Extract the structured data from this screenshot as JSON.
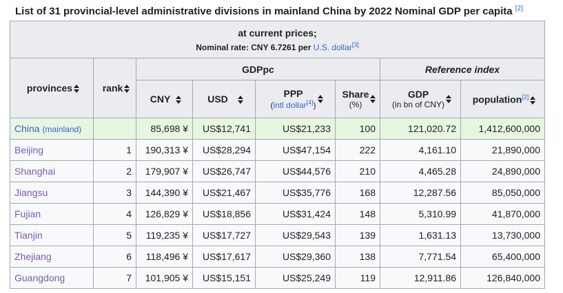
{
  "caption": {
    "title": "List of 31 provincial-level administrative divisions in mainland China by 2022 Nominal GDP per capita",
    "ref": "[2]"
  },
  "subheader": {
    "line1": "at current prices;",
    "line2_prefix": "Nominal rate: CNY 6.7261 per ",
    "line2_link": "U.S. dollar",
    "line2_ref": "[3]"
  },
  "headers": {
    "provinces": "provinces",
    "rank": "rank",
    "gdppc": "GDPpc",
    "reference": "Reference index",
    "cny": "CNY",
    "usd": "USD",
    "ppp": "PPP",
    "ppp_sub_link": "intl dollar",
    "ppp_sub_ref": "[4]",
    "share": "Share",
    "share_sub": "(%)",
    "gdp": "GDP",
    "gdp_sub": "(in bn of CNY)",
    "population": "population",
    "population_ref": "[2]"
  },
  "rows": [
    {
      "name": "China",
      "name_suffix": "(mainland)",
      "rank": "",
      "cny": "85,698 ¥",
      "usd": "US$12,741",
      "ppp": "US$21,233",
      "share": "100",
      "gdp": "121,020.72",
      "population": "1,412,600,000"
    },
    {
      "name": "Beijing",
      "rank": "1",
      "cny": "190,313 ¥",
      "usd": "US$28,294",
      "ppp": "US$47,154",
      "share": "222",
      "gdp": "4,161.10",
      "population": "21,890,000"
    },
    {
      "name": "Shanghai",
      "rank": "2",
      "cny": "179,907 ¥",
      "usd": "US$26,747",
      "ppp": "US$44,576",
      "share": "210",
      "gdp": "4,465.28",
      "population": "24,890,000"
    },
    {
      "name": "Jiangsu",
      "rank": "3",
      "cny": "144,390 ¥",
      "usd": "US$21,467",
      "ppp": "US$35,776",
      "share": "168",
      "gdp": "12,287.56",
      "population": "85,050,000"
    },
    {
      "name": "Fujian",
      "rank": "4",
      "cny": "126,829 ¥",
      "usd": "US$18,856",
      "ppp": "US$31,424",
      "share": "148",
      "gdp": "5,310.99",
      "population": "41,870,000"
    },
    {
      "name": "Tianjin",
      "rank": "5",
      "cny": "119,235 ¥",
      "usd": "US$17,727",
      "ppp": "US$29,543",
      "share": "139",
      "gdp": "1,631.13",
      "population": "13,730,000"
    },
    {
      "name": "Zhejiang",
      "rank": "6",
      "cny": "118,496 ¥",
      "usd": "US$17,617",
      "ppp": "US$29,360",
      "share": "138",
      "gdp": "7,771.54",
      "population": "65,400,000"
    },
    {
      "name": "Guangdong",
      "rank": "7",
      "cny": "101,905 ¥",
      "usd": "US$15,151",
      "ppp": "US$25,249",
      "share": "119",
      "gdp": "12,911.86",
      "population": "126,840,000"
    }
  ]
}
